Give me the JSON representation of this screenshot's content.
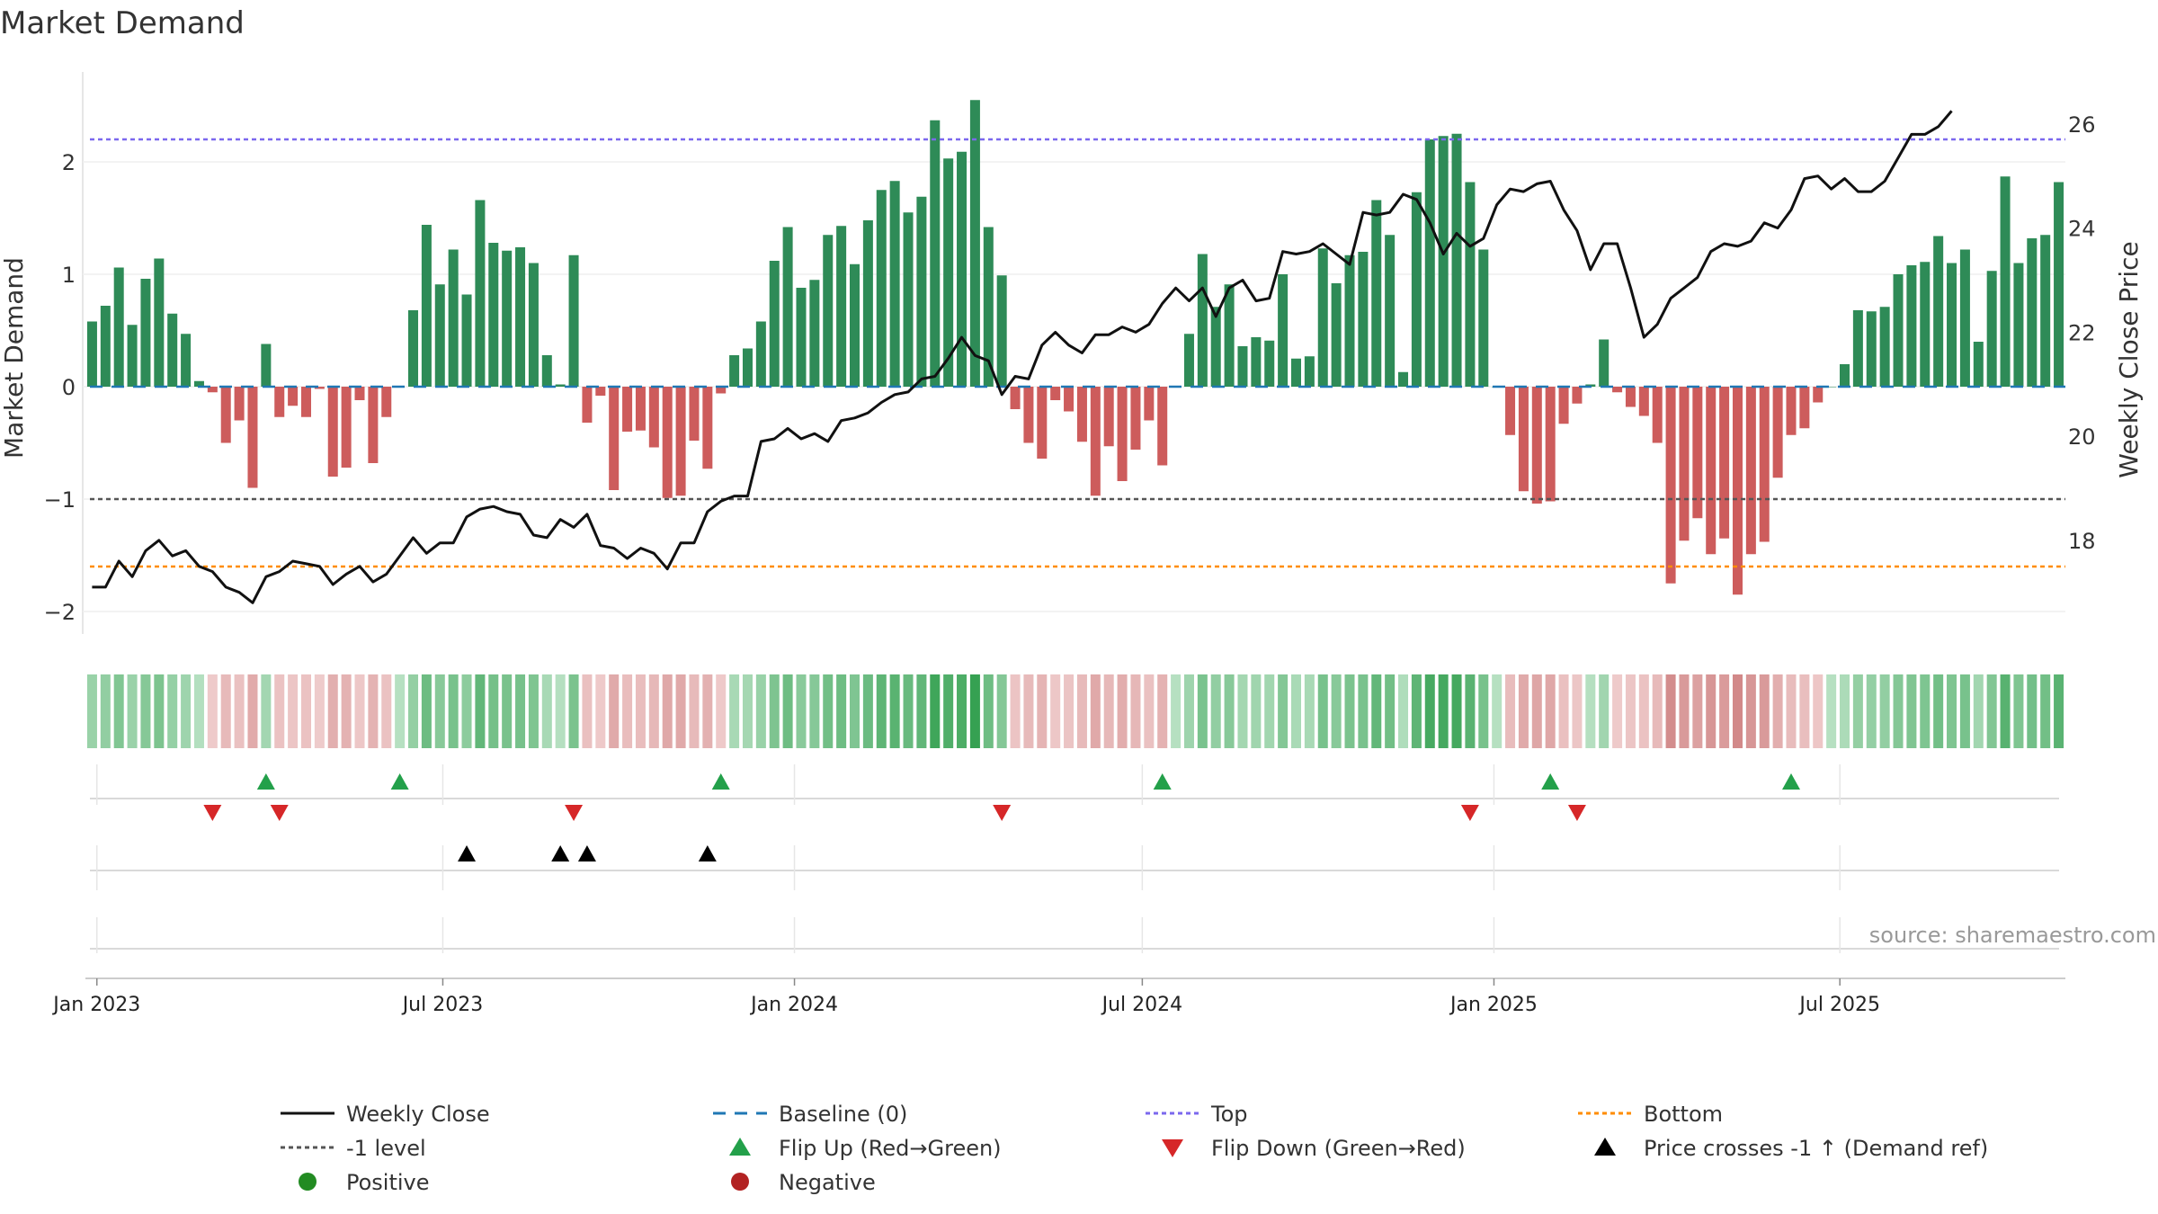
{
  "title": "Market Demand",
  "source": "source: sharemaestro.com",
  "colors": {
    "positive_bar": "#2e8b57",
    "negative_bar": "#cd5c5c",
    "close_line": "#111111",
    "baseline": "#1f77b4",
    "top": "#7b68ee",
    "minus1": "#555555",
    "bottom": "#ff8c00",
    "flip_up": "#23a04a",
    "flip_down": "#d62728",
    "cross": "#000000",
    "positive_dot": "#228b22",
    "negative_dot": "#b22222"
  },
  "chart_data": {
    "type": "bar",
    "x_start": "2022-12-26",
    "x_ticks": [
      {
        "date": "2023-01-01",
        "label": "Jan 2023"
      },
      {
        "date": "2023-07-01",
        "label": "Jul 2023"
      },
      {
        "date": "2024-01-01",
        "label": "Jan 2024"
      },
      {
        "date": "2024-07-01",
        "label": "Jul 2024"
      },
      {
        "date": "2025-01-01",
        "label": "Jan 2025"
      },
      {
        "date": "2025-07-01",
        "label": "Jul 2025"
      }
    ],
    "y_left": {
      "label": "Market Demand",
      "ylim": [
        -2.2,
        2.8
      ],
      "ticks": [
        -2,
        -1,
        0,
        1,
        2
      ],
      "tick_labels": [
        "−2",
        "−1",
        "0",
        "1",
        "2"
      ]
    },
    "y_right": {
      "label": "Weekly Close Price",
      "ylim": [
        16.2,
        27.0
      ],
      "ticks": [
        18,
        20,
        22,
        24,
        26
      ]
    },
    "reference_lines": {
      "top": 2.2,
      "minus1": -1.0,
      "bottom": -1.6,
      "baseline": 0
    },
    "series": [
      {
        "name": "Market Demand",
        "values": [
          0.58,
          0.72,
          1.06,
          0.55,
          0.96,
          1.14,
          0.65,
          0.47,
          0.05,
          -0.05,
          -0.5,
          -0.3,
          -0.9,
          0.38,
          -0.27,
          -0.17,
          -0.27,
          -0.02,
          -0.8,
          -0.72,
          -0.12,
          -0.68,
          -0.27,
          0.0,
          0.68,
          1.44,
          0.91,
          1.22,
          0.82,
          1.66,
          1.28,
          1.21,
          1.24,
          1.1,
          0.28,
          0.02,
          1.17,
          -0.32,
          -0.08,
          -0.92,
          -0.4,
          -0.39,
          -0.54,
          -0.99,
          -0.97,
          -0.48,
          -0.73,
          -0.06,
          0.28,
          0.34,
          0.58,
          1.12,
          1.42,
          0.88,
          0.95,
          1.35,
          1.43,
          1.09,
          1.48,
          1.75,
          1.83,
          1.55,
          1.69,
          2.37,
          2.03,
          2.09,
          2.55,
          1.42,
          0.99,
          -0.2,
          -0.5,
          -0.64,
          -0.12,
          -0.22,
          -0.49,
          -0.97,
          -0.53,
          -0.84,
          -0.56,
          -0.3,
          -0.7,
          0.0,
          0.47,
          1.18,
          0.71,
          0.91,
          0.36,
          0.44,
          0.41,
          1.0,
          0.25,
          0.27,
          1.23,
          0.92,
          1.17,
          1.2,
          1.66,
          1.35,
          0.13,
          1.73,
          2.2,
          2.23,
          2.25,
          1.82,
          1.22,
          0.0,
          -0.43,
          -0.93,
          -1.04,
          -1.02,
          -0.33,
          -0.15,
          0.02,
          0.42,
          -0.05,
          -0.18,
          -0.26,
          -0.5,
          -1.75,
          -1.37,
          -1.17,
          -1.49,
          -1.35,
          -1.85,
          -1.49,
          -1.38,
          -0.81,
          -0.43,
          -0.37,
          -0.14,
          0.0,
          0.2,
          0.68,
          0.67,
          0.71,
          1.0,
          1.08,
          1.11,
          1.34,
          1.1,
          1.22,
          0.4,
          1.03,
          1.87,
          1.1,
          1.32,
          1.35,
          1.82
        ]
      },
      {
        "name": "Weekly Close",
        "values": [
          17.1,
          17.1,
          17.6,
          17.3,
          17.8,
          18.0,
          17.7,
          17.8,
          17.5,
          17.4,
          17.1,
          17.0,
          16.8,
          17.3,
          17.4,
          17.6,
          17.55,
          17.5,
          17.15,
          17.35,
          17.5,
          17.2,
          17.35,
          17.7,
          18.05,
          17.75,
          17.95,
          17.95,
          18.45,
          18.6,
          18.65,
          18.55,
          18.5,
          18.1,
          18.05,
          18.4,
          18.25,
          18.5,
          17.9,
          17.85,
          17.65,
          17.85,
          17.75,
          17.45,
          17.95,
          17.95,
          18.55,
          18.75,
          18.85,
          18.85,
          19.9,
          19.95,
          20.15,
          19.95,
          20.05,
          19.9,
          20.3,
          20.35,
          20.45,
          20.65,
          20.8,
          20.85,
          21.1,
          21.15,
          21.5,
          21.9,
          21.55,
          21.45,
          20.8,
          21.15,
          21.1,
          21.75,
          22.0,
          21.75,
          21.6,
          21.95,
          21.95,
          22.1,
          22.0,
          22.15,
          22.55,
          22.85,
          22.6,
          22.85,
          22.3,
          22.85,
          23.0,
          22.6,
          22.65,
          23.55,
          23.5,
          23.55,
          23.7,
          23.5,
          23.3,
          24.3,
          24.25,
          24.3,
          24.65,
          24.55,
          24.1,
          23.5,
          23.9,
          23.65,
          23.8,
          24.45,
          24.75,
          24.7,
          24.85,
          24.9,
          24.35,
          23.95,
          23.2,
          23.7,
          23.7,
          22.85,
          21.9,
          22.15,
          22.65,
          22.85,
          23.05,
          23.55,
          23.7,
          23.65,
          23.75,
          24.1,
          24.0,
          24.35,
          24.95,
          25.0,
          24.75,
          24.95,
          24.7,
          24.7,
          24.9,
          25.35,
          25.8,
          25.8,
          25.95,
          26.25
        ],
        "close_line_start_index": 0
      }
    ],
    "flip_up_weeks": [
      13,
      23,
      47,
      80,
      109,
      127
    ],
    "flip_down_weeks": [
      9,
      14,
      36,
      68,
      103,
      111
    ],
    "price_cross_weeks": [
      28,
      35,
      37,
      46
    ],
    "legend": [
      {
        "label": "Weekly Close",
        "kind": "line-solid",
        "color_key": "close_line"
      },
      {
        "label": "Baseline (0)",
        "kind": "line-dashed",
        "color_key": "baseline"
      },
      {
        "label": "Top",
        "kind": "line-dotted",
        "color_key": "top"
      },
      {
        "label": "Bottom",
        "kind": "line-dotted",
        "color_key": "bottom"
      },
      {
        "label": "-1 level",
        "kind": "line-dotted",
        "color_key": "minus1"
      },
      {
        "label": "Flip Up (Red→Green)",
        "kind": "tri-up",
        "color_key": "flip_up"
      },
      {
        "label": "Flip Down (Green→Red)",
        "kind": "tri-down",
        "color_key": "flip_down"
      },
      {
        "label": "Price crosses -1 ↑ (Demand ref)",
        "kind": "tri-up",
        "color_key": "cross"
      },
      {
        "label": "Positive",
        "kind": "dot",
        "color_key": "positive_dot"
      },
      {
        "label": "Negative",
        "kind": "dot",
        "color_key": "negative_dot"
      }
    ],
    "legend_placement": "bottom"
  }
}
